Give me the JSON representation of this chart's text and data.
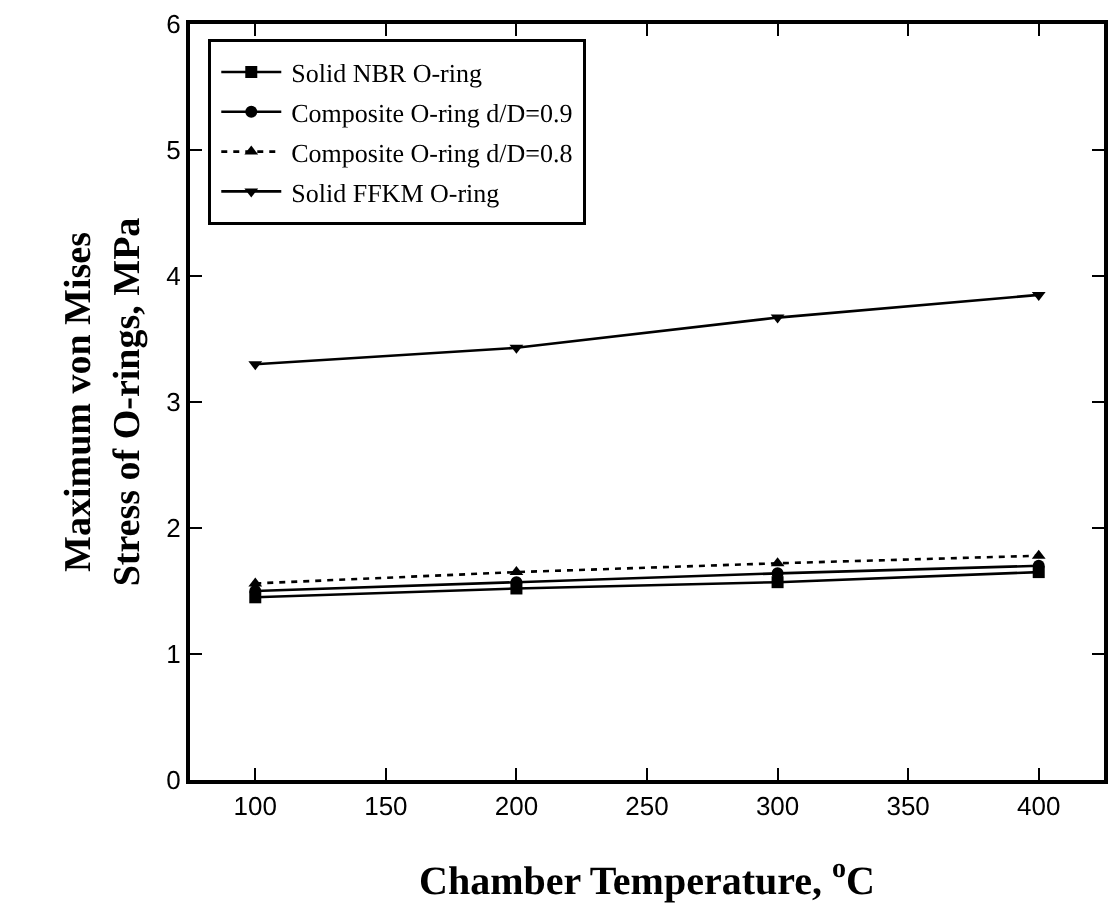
{
  "chart_data": {
    "type": "line",
    "xlabel": "Chamber Temperature, $^{o}$C",
    "ylabel": "Maximum von Mises Stress of O-rings, MPa",
    "x": [
      100,
      200,
      300,
      400
    ],
    "series": [
      {
        "name": "Solid NBR O-ring",
        "color": "#000000",
        "marker": "square",
        "line_style": "solid",
        "values": [
          1.45,
          1.52,
          1.57,
          1.65
        ]
      },
      {
        "name": "Composite O-ring d/D=0.9",
        "color": "#000000",
        "marker": "circle",
        "line_style": "solid",
        "values": [
          1.5,
          1.57,
          1.64,
          1.7
        ]
      },
      {
        "name": "Composite O-ring d/D=0.8",
        "color": "#000000",
        "marker": "triangle",
        "line_style": "dotted",
        "values": [
          1.56,
          1.65,
          1.72,
          1.78
        ]
      },
      {
        "name": "Solid FFKM O-ring",
        "color": "#000000",
        "marker": "triangle-down",
        "line_style": "solid",
        "values": [
          3.3,
          3.43,
          3.67,
          3.85
        ]
      }
    ],
    "xlim": [
      75,
      425
    ],
    "xticks": [
      100,
      150,
      200,
      250,
      300,
      350,
      400
    ],
    "ylim": [
      0,
      6
    ],
    "yticks": [
      0,
      1,
      2,
      3,
      4,
      5,
      6
    ],
    "grid": false,
    "legend": "top left"
  }
}
